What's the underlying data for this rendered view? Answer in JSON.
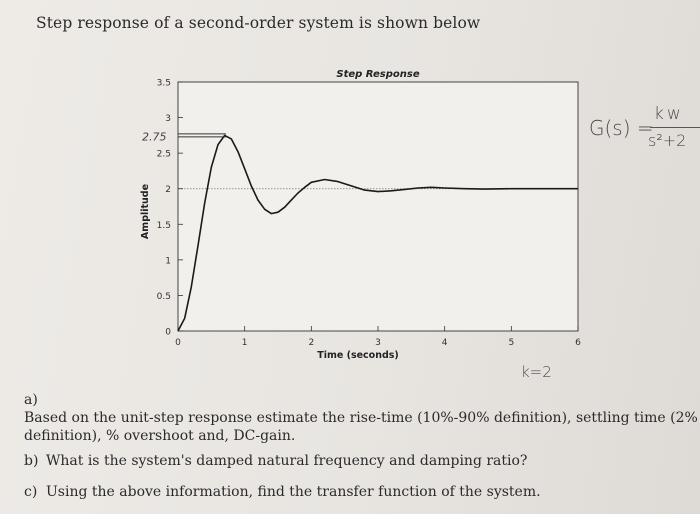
{
  "heading": "Step response of a second-order system is shown below",
  "chart_data": {
    "type": "line",
    "title": "Step Response",
    "xlabel": "Time (seconds)",
    "ylabel": "Amplitude",
    "xlim": [
      0,
      6
    ],
    "ylim": [
      0,
      3.5
    ],
    "x_ticks": [
      "0",
      "1",
      "2",
      "3",
      "4",
      "5",
      "6"
    ],
    "y_ticks": [
      "0",
      "0.5",
      "1",
      "1.5",
      "2",
      "2.5",
      "3",
      "3.5"
    ],
    "final_value": 2,
    "series": [
      {
        "x": [
          0,
          0.1,
          0.2,
          0.3,
          0.4,
          0.5,
          0.6,
          0.7,
          0.8,
          0.9,
          1.0,
          1.1,
          1.2,
          1.3,
          1.4,
          1.5,
          1.6,
          1.7,
          1.8,
          1.9,
          2.0,
          2.2,
          2.4,
          2.6,
          2.8,
          3.0,
          3.2,
          3.4,
          3.6,
          3.8,
          4.0,
          4.3,
          4.6,
          5.0,
          5.5,
          6.0
        ],
        "y": [
          0,
          0.18,
          0.62,
          1.2,
          1.8,
          2.3,
          2.62,
          2.75,
          2.7,
          2.52,
          2.28,
          2.04,
          1.84,
          1.71,
          1.65,
          1.67,
          1.74,
          1.84,
          1.94,
          2.02,
          2.09,
          2.13,
          2.1,
          2.04,
          1.98,
          1.96,
          1.97,
          1.99,
          2.01,
          2.02,
          2.01,
          2.0,
          1.995,
          2.0,
          2.0,
          2.0
        ]
      }
    ]
  },
  "annotations": {
    "peak_note": "2.75",
    "transfer_fn_lhs": "G(s) =",
    "transfer_fn_num": "kw",
    "transfer_fn_den": "s²+2",
    "gain_note": "k=2"
  },
  "questions": [
    {
      "label": "a)",
      "lines": [
        "Based on the unit-step response estimate the rise-time (10%-90% definition), settling time (2%",
        "definition), % overshoot and, DC-gain."
      ]
    },
    {
      "label": "b)",
      "lines": [
        "What is the system's damped natural frequency and damping ratio?"
      ]
    },
    {
      "label": "c)",
      "lines": [
        "Using the above information, find the transfer function of the system."
      ]
    }
  ]
}
